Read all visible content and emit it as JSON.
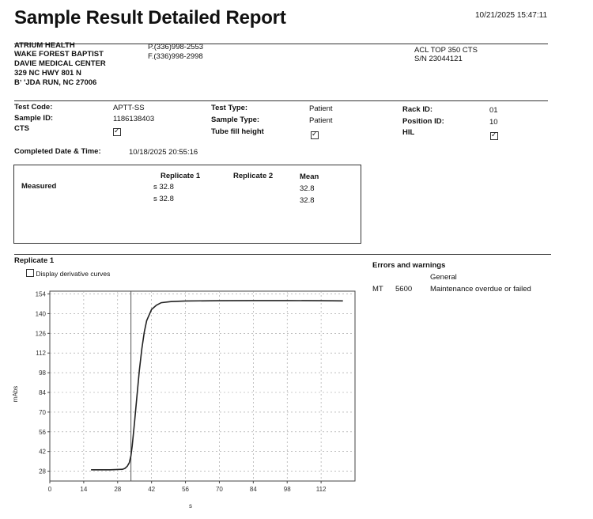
{
  "report": {
    "title": "Sample Result Detailed Report",
    "printed_datetime": "10/21/2025 15:47:11"
  },
  "facility": {
    "line1": "ATRIUM HEALTH",
    "line2": "WAKE FOREST BAPTIST",
    "line3": "DAVIE MEDICAL CENTER",
    "line4": "329 NC HWY 801 N",
    "line5": "Bʼ   'JDA RUN, NC 27006",
    "phone": "P.(336)998-2553",
    "fax": "F.(336)998-2998",
    "instrument": "ACL TOP 350 CTS",
    "serial": "S/N 23044121"
  },
  "sample": {
    "test_code_label": "Test Code:",
    "test_code": "APTT-SS",
    "sample_id_label": "Sample ID:",
    "sample_id": "1186138403",
    "cts_label": "CTS",
    "cts_checked": true,
    "test_type_label": "Test Type:",
    "test_type": "Patient",
    "sample_type_label": "Sample Type:",
    "sample_type": "Patient",
    "tube_fill_label": "Tube fill height",
    "tube_fill_checked": true,
    "rack_id_label": "Rack ID:",
    "rack_id": "01",
    "position_id_label": "Position ID:",
    "position_id": "10",
    "hil_label": "HIL",
    "hil_checked": true,
    "completed_label": "Completed Date & Time:",
    "completed": "10/18/2025 20:55:16"
  },
  "results": {
    "col_rep1": "Replicate 1",
    "col_rep2": "Replicate 2",
    "col_mean": "Mean",
    "row_label": "Measured",
    "rows": [
      {
        "rep1": "s 32.8",
        "mean": "32.8"
      },
      {
        "rep1": "s 32.8",
        "mean": "32.8"
      }
    ]
  },
  "replicate_section": {
    "title": "Replicate 1",
    "display_derivative_label": "Display derivative curves",
    "display_derivative_checked": false
  },
  "errors": {
    "title": "Errors and warnings",
    "category": "General",
    "items": [
      {
        "code": "MT",
        "number": "5600",
        "message": "Maintenance overdue or failed"
      }
    ]
  },
  "chart_data": {
    "type": "line",
    "title": "",
    "xlabel": "s",
    "ylabel": "mAbs",
    "xlim": [
      0,
      126
    ],
    "ylim": [
      21,
      156
    ],
    "xticks": [
      0,
      14,
      28,
      42,
      56,
      70,
      84,
      98,
      112
    ],
    "yticks": [
      28,
      42,
      56,
      70,
      84,
      98,
      112,
      126,
      140,
      154
    ],
    "grid": true,
    "marker_x": 33.5,
    "series": [
      {
        "name": "",
        "x": [
          17,
          20,
          25,
          30,
          31,
          32,
          32.8,
          33.5,
          34,
          35,
          36,
          37,
          38,
          39,
          40,
          42,
          44,
          46,
          50,
          56,
          70,
          84,
          98,
          112,
          121
        ],
        "y": [
          29,
          29,
          29,
          29.3,
          30,
          31.5,
          34,
          39,
          46,
          63,
          82,
          100,
          115,
          127,
          135,
          143,
          146,
          147.8,
          148.6,
          149,
          149.2,
          149.3,
          149.3,
          149.2,
          149.1
        ]
      }
    ]
  }
}
